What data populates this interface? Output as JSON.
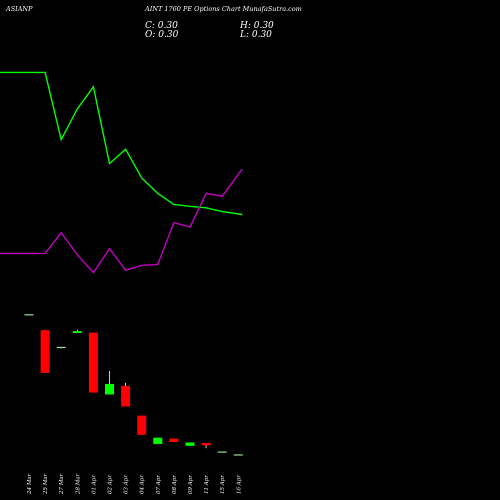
{
  "header": {
    "symbol": "ASIANP",
    "title": "AINT 1760 PE Options Chart MunafaSutra.com",
    "close_label": "C: 0.30",
    "high_label": "H: 0.30",
    "open_label": "O: 0.30",
    "low_label": "L: 0.30"
  },
  "colors": {
    "background": "#000000",
    "up": "#00ff00",
    "down": "#ff0000",
    "line_green": "#00ff00",
    "line_magenta": "#c000c0"
  },
  "chart_data": {
    "type": "candlestick",
    "categories": [
      "24 Mar",
      "25 Mar",
      "27 Mar",
      "28 Mar",
      "01 Apr",
      "02 Apr",
      "03 Apr",
      "04 Apr",
      "07 Apr",
      "08 Apr",
      "09 Apr",
      "11 Apr",
      "15 Apr",
      "16 Apr"
    ],
    "candles": [
      {
        "open": 36.5,
        "high": 36.5,
        "low": 36.5,
        "close": 36.5,
        "dir": "flat"
      },
      {
        "open": 33.3,
        "high": 33.3,
        "low": 24.4,
        "close": 24.4,
        "dir": "down"
      },
      {
        "open": 29.7,
        "high": 29.7,
        "low": 29.5,
        "close": 29.5,
        "dir": "flat"
      },
      {
        "open": 32.7,
        "high": 33.4,
        "low": 32.7,
        "close": 33.1,
        "dir": "up"
      },
      {
        "open": 32.8,
        "high": 32.8,
        "low": 20.3,
        "close": 20.3,
        "dir": "down"
      },
      {
        "open": 19.9,
        "high": 24.8,
        "low": 19.9,
        "close": 22.1,
        "dir": "up"
      },
      {
        "open": 21.7,
        "high": 22.3,
        "low": 17.4,
        "close": 17.4,
        "dir": "down"
      },
      {
        "open": 15.5,
        "high": 15.5,
        "low": 11.5,
        "close": 11.5,
        "dir": "down"
      },
      {
        "open": 9.6,
        "high": 10.9,
        "low": 9.6,
        "close": 10.9,
        "dir": "up"
      },
      {
        "open": 10.7,
        "high": 10.7,
        "low": 10.0,
        "close": 10.0,
        "dir": "down"
      },
      {
        "open": 9.2,
        "high": 9.9,
        "low": 9.2,
        "close": 9.9,
        "dir": "up"
      },
      {
        "open": 9.8,
        "high": 9.8,
        "low": 8.7,
        "close": 9.3,
        "dir": "down"
      },
      {
        "open": 7.9,
        "high": 7.9,
        "low": 7.9,
        "close": 7.9,
        "dir": "flat"
      },
      {
        "open": 7.3,
        "high": 7.3,
        "low": 7.3,
        "close": 7.3,
        "dir": "flat"
      }
    ],
    "series": [
      {
        "values": [
          87.0,
          87.0,
          73.0,
          79.4,
          84.0,
          68.0,
          71.0,
          65.0,
          61.8,
          59.5,
          59.1,
          58.8,
          58.0,
          57.4
        ]
      },
      {
        "values": [
          49.3,
          49.3,
          53.6,
          49.0,
          45.3,
          50.3,
          45.8,
          46.8,
          47.0,
          55.7,
          54.8,
          61.8,
          61.2,
          66.9
        ]
      }
    ],
    "ylim": [
      0,
      100
    ],
    "grid": false,
    "legend": "none"
  }
}
